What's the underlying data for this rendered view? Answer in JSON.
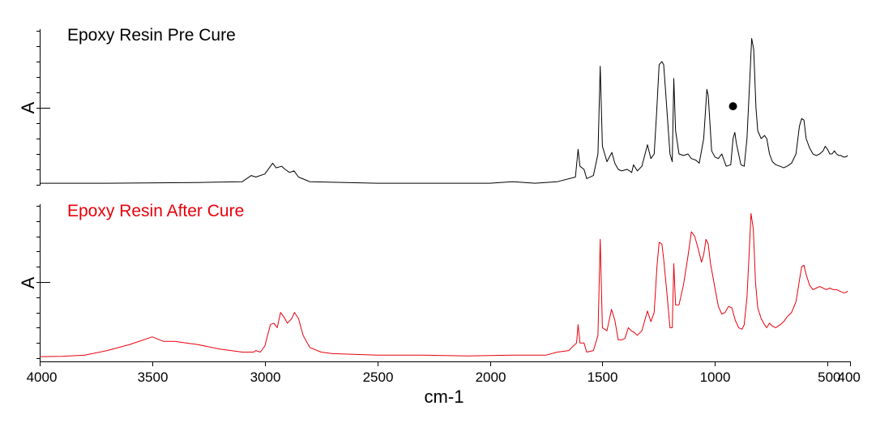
{
  "chart_data": {
    "type": "line",
    "xlabel": "cm-1",
    "xlim": [
      4000,
      400
    ],
    "x_reversed": true,
    "x_ticks": [
      4000,
      3500,
      3000,
      2500,
      2000,
      1500,
      1000,
      500,
      400
    ],
    "x_tick_labels": [
      "4000",
      "3500",
      "3000",
      "2500",
      "2000",
      "1500",
      "1000",
      "500",
      "400"
    ],
    "grid": false,
    "panels": [
      {
        "title": "Epoxy Resin Pre Cure",
        "ylabel": "A",
        "color": "#000000",
        "title_color": "#000000",
        "ylim": [
          0,
          1
        ],
        "marker": {
          "x": 920,
          "y": 0.51,
          "symbol": "filled-circle"
        },
        "points": [
          [
            4000,
            0.01
          ],
          [
            3700,
            0.01
          ],
          [
            3300,
            0.015
          ],
          [
            3100,
            0.02
          ],
          [
            3060,
            0.06
          ],
          [
            3040,
            0.05
          ],
          [
            3000,
            0.07
          ],
          [
            2965,
            0.14
          ],
          [
            2950,
            0.11
          ],
          [
            2925,
            0.12
          ],
          [
            2910,
            0.1
          ],
          [
            2890,
            0.08
          ],
          [
            2870,
            0.09
          ],
          [
            2850,
            0.05
          ],
          [
            2800,
            0.02
          ],
          [
            2500,
            0.01
          ],
          [
            2000,
            0.01
          ],
          [
            1900,
            0.02
          ],
          [
            1800,
            0.01
          ],
          [
            1700,
            0.02
          ],
          [
            1620,
            0.05
          ],
          [
            1608,
            0.23
          ],
          [
            1600,
            0.12
          ],
          [
            1582,
            0.1
          ],
          [
            1570,
            0.04
          ],
          [
            1540,
            0.06
          ],
          [
            1520,
            0.2
          ],
          [
            1510,
            0.77
          ],
          [
            1500,
            0.25
          ],
          [
            1480,
            0.15
          ],
          [
            1458,
            0.21
          ],
          [
            1445,
            0.14
          ],
          [
            1430,
            0.1
          ],
          [
            1415,
            0.09
          ],
          [
            1390,
            0.1
          ],
          [
            1370,
            0.08
          ],
          [
            1362,
            0.13
          ],
          [
            1345,
            0.09
          ],
          [
            1325,
            0.12
          ],
          [
            1300,
            0.26
          ],
          [
            1285,
            0.17
          ],
          [
            1270,
            0.2
          ],
          [
            1260,
            0.45
          ],
          [
            1248,
            0.78
          ],
          [
            1236,
            0.8
          ],
          [
            1228,
            0.78
          ],
          [
            1220,
            0.62
          ],
          [
            1200,
            0.2
          ],
          [
            1190,
            0.15
          ],
          [
            1183,
            0.69
          ],
          [
            1175,
            0.35
          ],
          [
            1160,
            0.2
          ],
          [
            1140,
            0.19
          ],
          [
            1120,
            0.2
          ],
          [
            1105,
            0.17
          ],
          [
            1085,
            0.16
          ],
          [
            1070,
            0.14
          ],
          [
            1050,
            0.3
          ],
          [
            1036,
            0.62
          ],
          [
            1030,
            0.58
          ],
          [
            1015,
            0.22
          ],
          [
            1000,
            0.18
          ],
          [
            985,
            0.17
          ],
          [
            970,
            0.2
          ],
          [
            950,
            0.12
          ],
          [
            930,
            0.13
          ],
          [
            920,
            0.3
          ],
          [
            912,
            0.34
          ],
          [
            905,
            0.27
          ],
          [
            885,
            0.13
          ],
          [
            870,
            0.12
          ],
          [
            858,
            0.3
          ],
          [
            845,
            0.7
          ],
          [
            837,
            0.95
          ],
          [
            828,
            0.88
          ],
          [
            818,
            0.5
          ],
          [
            810,
            0.35
          ],
          [
            795,
            0.3
          ],
          [
            780,
            0.32
          ],
          [
            770,
            0.3
          ],
          [
            758,
            0.2
          ],
          [
            745,
            0.15
          ],
          [
            730,
            0.13
          ],
          [
            710,
            0.12
          ],
          [
            695,
            0.11
          ],
          [
            680,
            0.12
          ],
          [
            660,
            0.14
          ],
          [
            640,
            0.2
          ],
          [
            625,
            0.38
          ],
          [
            615,
            0.43
          ],
          [
            605,
            0.42
          ],
          [
            595,
            0.3
          ],
          [
            580,
            0.24
          ],
          [
            565,
            0.2
          ],
          [
            550,
            0.19
          ],
          [
            535,
            0.2
          ],
          [
            520,
            0.22
          ],
          [
            510,
            0.25
          ],
          [
            500,
            0.23
          ],
          [
            490,
            0.2
          ],
          [
            480,
            0.2
          ],
          [
            470,
            0.22
          ],
          [
            460,
            0.2
          ],
          [
            450,
            0.19
          ],
          [
            440,
            0.19
          ],
          [
            430,
            0.18
          ],
          [
            420,
            0.18
          ],
          [
            410,
            0.19
          ]
        ]
      },
      {
        "title": "Epoxy Resin After Cure",
        "ylabel": "A",
        "color": "#e8000b",
        "title_color": "#e8000b",
        "ylim": [
          0,
          1
        ],
        "points": [
          [
            4000,
            0.01
          ],
          [
            3900,
            0.012
          ],
          [
            3800,
            0.02
          ],
          [
            3700,
            0.05
          ],
          [
            3600,
            0.09
          ],
          [
            3500,
            0.14
          ],
          [
            3450,
            0.11
          ],
          [
            3400,
            0.11
          ],
          [
            3350,
            0.1
          ],
          [
            3300,
            0.09
          ],
          [
            3200,
            0.06
          ],
          [
            3150,
            0.05
          ],
          [
            3100,
            0.04
          ],
          [
            3050,
            0.04
          ],
          [
            3040,
            0.05
          ],
          [
            3020,
            0.04
          ],
          [
            3000,
            0.08
          ],
          [
            2975,
            0.22
          ],
          [
            2960,
            0.23
          ],
          [
            2945,
            0.2
          ],
          [
            2930,
            0.3
          ],
          [
            2915,
            0.27
          ],
          [
            2900,
            0.23
          ],
          [
            2880,
            0.26
          ],
          [
            2868,
            0.3
          ],
          [
            2850,
            0.26
          ],
          [
            2830,
            0.15
          ],
          [
            2800,
            0.07
          ],
          [
            2750,
            0.04
          ],
          [
            2700,
            0.03
          ],
          [
            2500,
            0.02
          ],
          [
            2300,
            0.02
          ],
          [
            2100,
            0.015
          ],
          [
            1900,
            0.02
          ],
          [
            1800,
            0.02
          ],
          [
            1750,
            0.02
          ],
          [
            1700,
            0.04
          ],
          [
            1650,
            0.05
          ],
          [
            1615,
            0.1
          ],
          [
            1608,
            0.22
          ],
          [
            1600,
            0.1
          ],
          [
            1582,
            0.1
          ],
          [
            1570,
            0.04
          ],
          [
            1540,
            0.05
          ],
          [
            1520,
            0.15
          ],
          [
            1510,
            0.78
          ],
          [
            1500,
            0.2
          ],
          [
            1480,
            0.18
          ],
          [
            1460,
            0.32
          ],
          [
            1445,
            0.25
          ],
          [
            1430,
            0.12
          ],
          [
            1415,
            0.12
          ],
          [
            1400,
            0.13
          ],
          [
            1385,
            0.2
          ],
          [
            1372,
            0.18
          ],
          [
            1360,
            0.17
          ],
          [
            1345,
            0.15
          ],
          [
            1325,
            0.18
          ],
          [
            1300,
            0.31
          ],
          [
            1285,
            0.24
          ],
          [
            1270,
            0.3
          ],
          [
            1258,
            0.6
          ],
          [
            1248,
            0.76
          ],
          [
            1236,
            0.75
          ],
          [
            1228,
            0.65
          ],
          [
            1215,
            0.45
          ],
          [
            1200,
            0.2
          ],
          [
            1190,
            0.2
          ],
          [
            1183,
            0.62
          ],
          [
            1175,
            0.35
          ],
          [
            1160,
            0.35
          ],
          [
            1140,
            0.48
          ],
          [
            1120,
            0.67
          ],
          [
            1105,
            0.83
          ],
          [
            1090,
            0.8
          ],
          [
            1075,
            0.72
          ],
          [
            1060,
            0.63
          ],
          [
            1050,
            0.68
          ],
          [
            1040,
            0.78
          ],
          [
            1030,
            0.75
          ],
          [
            1020,
            0.62
          ],
          [
            1000,
            0.46
          ],
          [
            985,
            0.34
          ],
          [
            970,
            0.29
          ],
          [
            955,
            0.3
          ],
          [
            940,
            0.34
          ],
          [
            925,
            0.33
          ],
          [
            910,
            0.25
          ],
          [
            895,
            0.2
          ],
          [
            880,
            0.19
          ],
          [
            870,
            0.22
          ],
          [
            858,
            0.4
          ],
          [
            848,
            0.7
          ],
          [
            840,
            0.95
          ],
          [
            830,
            0.85
          ],
          [
            820,
            0.5
          ],
          [
            810,
            0.33
          ],
          [
            795,
            0.26
          ],
          [
            780,
            0.22
          ],
          [
            770,
            0.2
          ],
          [
            758,
            0.23
          ],
          [
            745,
            0.21
          ],
          [
            730,
            0.2
          ],
          [
            710,
            0.22
          ],
          [
            695,
            0.24
          ],
          [
            680,
            0.27
          ],
          [
            660,
            0.3
          ],
          [
            640,
            0.37
          ],
          [
            625,
            0.51
          ],
          [
            615,
            0.6
          ],
          [
            605,
            0.61
          ],
          [
            595,
            0.55
          ],
          [
            580,
            0.48
          ],
          [
            565,
            0.45
          ],
          [
            550,
            0.46
          ],
          [
            535,
            0.47
          ],
          [
            520,
            0.46
          ],
          [
            505,
            0.45
          ],
          [
            490,
            0.46
          ],
          [
            475,
            0.45
          ],
          [
            460,
            0.45
          ],
          [
            445,
            0.44
          ],
          [
            430,
            0.43
          ],
          [
            420,
            0.43
          ],
          [
            410,
            0.44
          ]
        ]
      }
    ]
  }
}
